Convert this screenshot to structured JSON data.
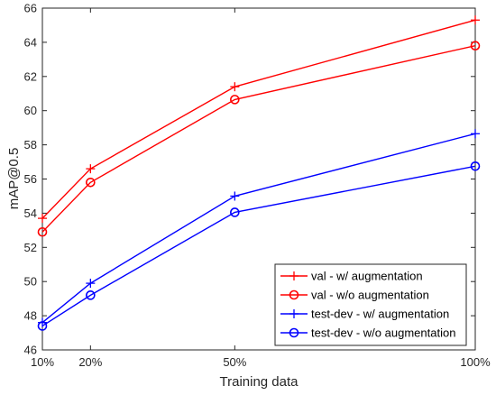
{
  "chart_data": {
    "type": "line",
    "title": "",
    "xlabel": "Training data",
    "ylabel": "mAP@0.5",
    "x": [
      10,
      20,
      50,
      100
    ],
    "x_tick_labels": [
      "10%",
      "20%",
      "50%",
      "100%"
    ],
    "xlim": [
      10,
      100
    ],
    "ylim": [
      46,
      66
    ],
    "y_ticks": [
      46,
      48,
      50,
      52,
      54,
      56,
      58,
      60,
      62,
      64,
      66
    ],
    "grid": false,
    "legend_position": "bottom-right",
    "series": [
      {
        "name": "val - w/ augmentation",
        "values": [
          53.7,
          56.6,
          61.4,
          65.3
        ],
        "color": "#ff0000",
        "marker": "plus"
      },
      {
        "name": "val - w/o augmentation",
        "values": [
          52.9,
          55.8,
          60.65,
          63.8
        ],
        "color": "#ff0000",
        "marker": "circle"
      },
      {
        "name": "test-dev - w/ augmentation",
        "values": [
          47.6,
          49.9,
          55.0,
          58.65
        ],
        "color": "#0000ff",
        "marker": "plus"
      },
      {
        "name": "test-dev - w/o augmentation",
        "values": [
          47.4,
          49.2,
          54.05,
          56.75
        ],
        "color": "#0000ff",
        "marker": "circle"
      }
    ]
  }
}
